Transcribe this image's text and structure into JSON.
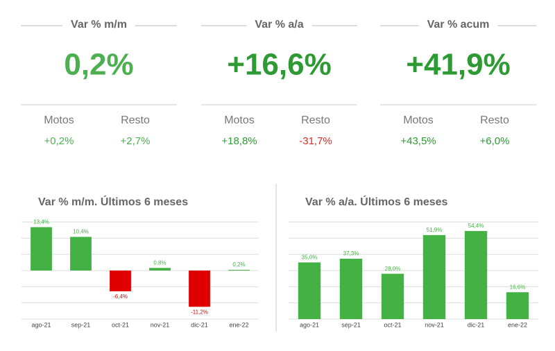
{
  "kpis": [
    {
      "title": "Var % m/m",
      "value": "0,2%",
      "color": "#4caf50",
      "items": [
        {
          "label": "Motos",
          "value": "+0,2%",
          "color": "#4caf50"
        },
        {
          "label": "Resto",
          "value": "+2,7%",
          "color": "#4caf50"
        }
      ]
    },
    {
      "title": "Var % a/a",
      "value": "+16,6%",
      "color": "#2e9a34",
      "items": [
        {
          "label": "Motos",
          "value": "+18,8%",
          "color": "#2e9a34"
        },
        {
          "label": "Resto",
          "value": "-31,7%",
          "color": "#d32f2f"
        }
      ]
    },
    {
      "title": "Var % acum",
      "value": "+41,9%",
      "color": "#2e9a34",
      "items": [
        {
          "label": "Motos",
          "value": "+43,5%",
          "color": "#2e9a34"
        },
        {
          "label": "Resto",
          "value": "+6,0%",
          "color": "#2e9a34"
        }
      ]
    }
  ],
  "chart_data": [
    {
      "type": "bar",
      "title": "Var % m/m. Últimos 6 meses",
      "categories": [
        "ago-21",
        "sep-21",
        "oct-21",
        "nov-21",
        "dic-21",
        "ene-22"
      ],
      "values": [
        13.4,
        10.4,
        -6.4,
        0.8,
        -11.2,
        0.2
      ],
      "value_labels": [
        "13,4%",
        "10,4%",
        "-6,4%",
        "0,8%",
        "-11,2%",
        "0,2%"
      ],
      "color": "#43b143",
      "negative_color": "#e00000",
      "ylim": [
        -15,
        15
      ],
      "yticks": [
        -15,
        -10,
        -5,
        0,
        5,
        10,
        15
      ],
      "grid": true,
      "tick_labels": false
    },
    {
      "type": "bar",
      "title": "Var % a/a. Últimos 6 meses",
      "categories": [
        "ago-21",
        "sep-21",
        "oct-21",
        "nov-21",
        "dic-21",
        "ene-22"
      ],
      "values": [
        35.0,
        37.3,
        28.0,
        51.9,
        54.4,
        16.6
      ],
      "value_labels": [
        "35,0%",
        "37,3%",
        "28,0%",
        "51,9%",
        "54,4%",
        "16,6%"
      ],
      "color": "#43b143",
      "negative_color": "#e00000",
      "ylim": [
        0,
        60
      ],
      "yticks": [
        0,
        10,
        20,
        30,
        40,
        50,
        60
      ],
      "grid": true,
      "tick_labels": false
    }
  ]
}
